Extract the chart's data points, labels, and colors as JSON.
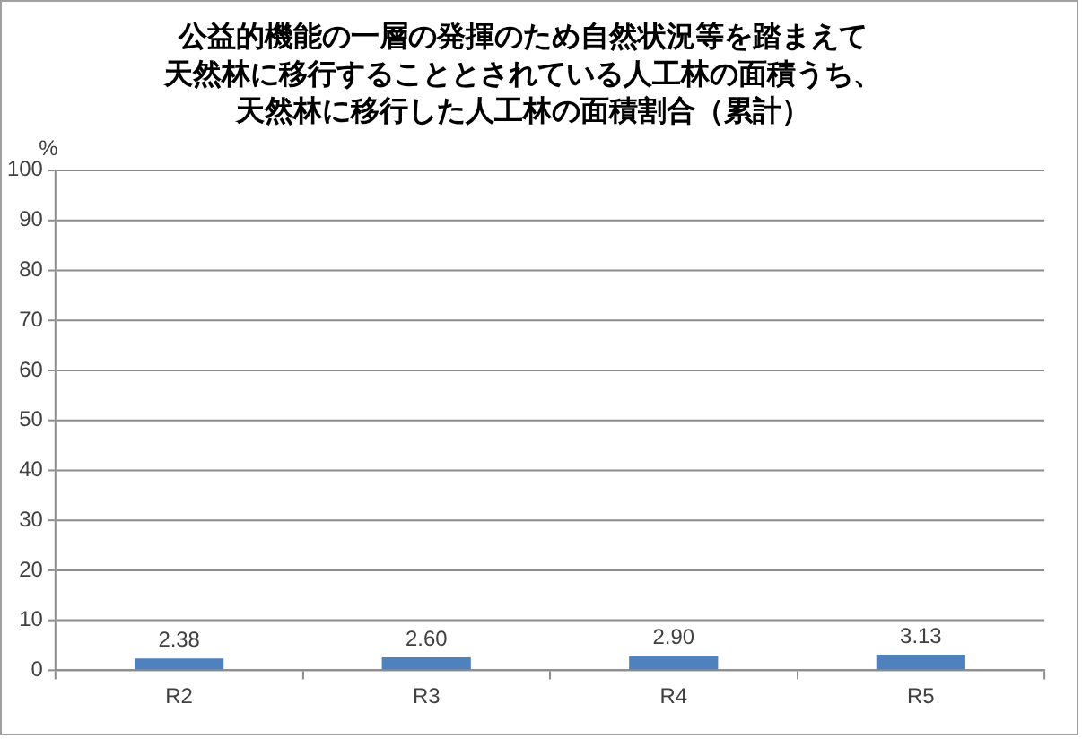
{
  "chart_data": {
    "type": "bar",
    "title": "公益的機能の一層の発揮のため自然状況等を踏まえて天然林に移行することとされている人工林の面積うち、天然林に移行した人工林の面積割合（累計）",
    "ylabel": "%",
    "categories": [
      "R2",
      "R3",
      "R4",
      "R5"
    ],
    "values": [
      2.38,
      2.6,
      2.9,
      3.13
    ],
    "color": "#4f81bd",
    "value_labels": [
      "2.38",
      "2.60",
      "2.90",
      "3.13"
    ],
    "ylim": [
      0,
      100
    ],
    "yticks": [
      0,
      10,
      20,
      30,
      40,
      50,
      60,
      70,
      80,
      90,
      100
    ],
    "grid": "y",
    "legend": false
  }
}
